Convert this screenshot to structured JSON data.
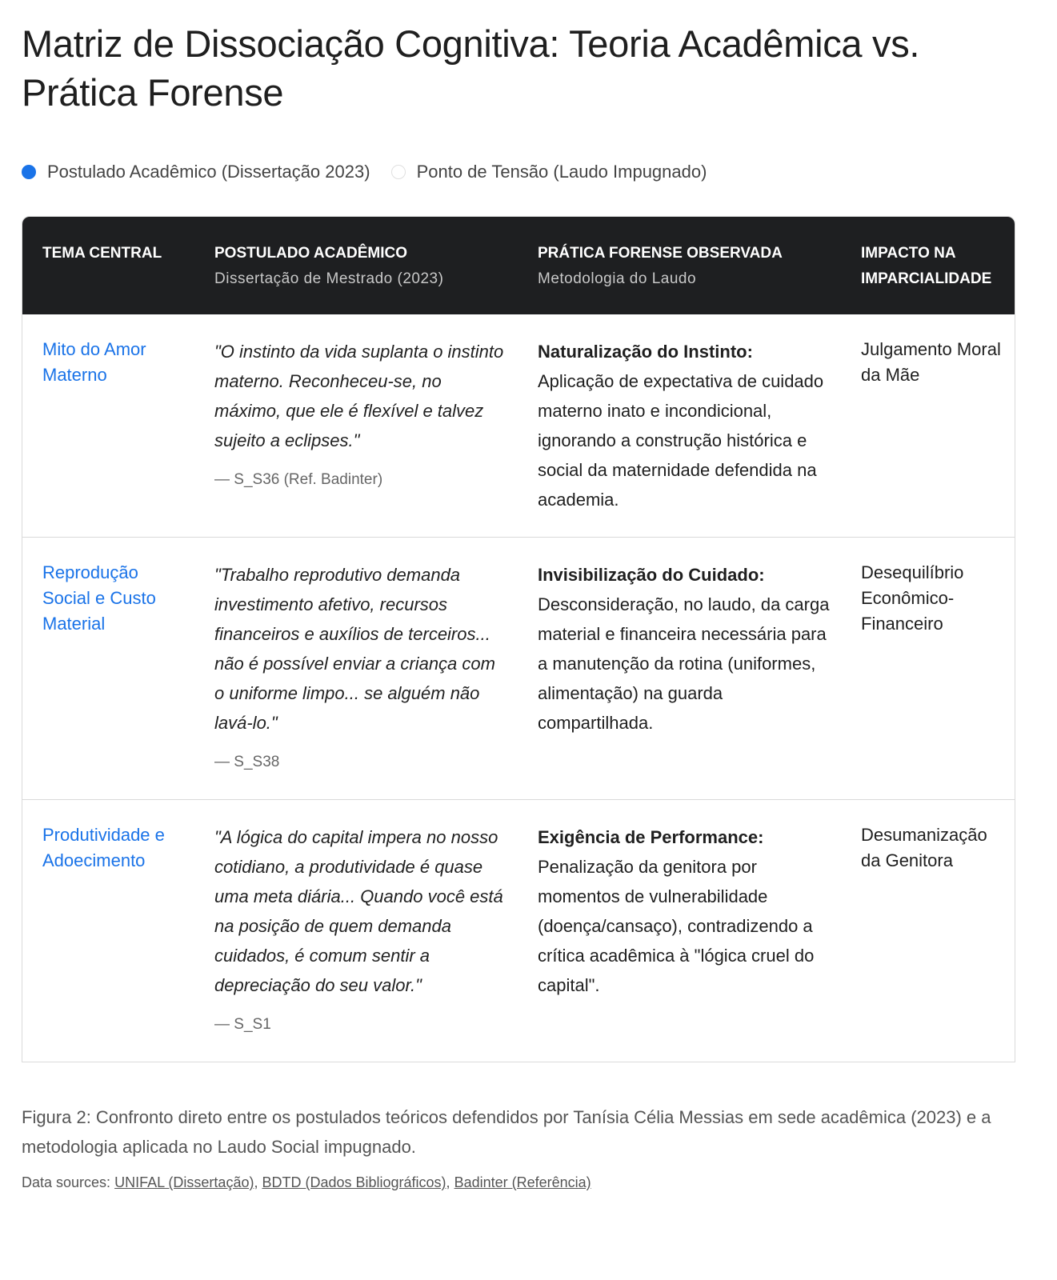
{
  "title": "Matriz de Dissociação Cognitiva: Teoria Acadêmica vs. Prática Forense",
  "legend": [
    {
      "label": "Postulado Acadêmico (Dissertação 2023)",
      "color": "#1a73e8",
      "style": "filled"
    },
    {
      "label": "Ponto de Tensão (Laudo Impugnado)",
      "color": "#e0e0e0",
      "style": "outline"
    }
  ],
  "table": {
    "headers": [
      {
        "title": "TEMA CENTRAL",
        "subtitle": ""
      },
      {
        "title": "POSTULADO ACADÊMICO",
        "subtitle": "Dissertação de Mestrado (2023)"
      },
      {
        "title": "PRÁTICA FORENSE OBSERVADA",
        "subtitle": "Metodologia do Laudo"
      },
      {
        "title": "IMPACTO NA IMPARCIALIDADE",
        "subtitle": ""
      }
    ],
    "rows": [
      {
        "theme": "Mito do Amor Materno",
        "quote": "\"O instinto da vida suplanta o instinto materno. Reconheceu-se, no máximo, que ele é flexível e talvez sujeito a eclipses.\"",
        "cite": "— S_S36 (Ref. Badinter)",
        "practice_title": "Naturalização do Instinto:",
        "practice_text": "Aplicação de expectativa de cuidado materno inato e incondicional, ignorando a construção histórica e social da maternidade defendida na academia.",
        "impact": "Julgamento Moral da Mãe"
      },
      {
        "theme": "Reprodução Social e Custo Material",
        "quote": "\"Trabalho reprodutivo demanda investimento afetivo, recursos financeiros e auxílios de terceiros... não é possível enviar a criança com o uniforme limpo... se alguém não lavá-lo.\"",
        "cite": "— S_S38",
        "practice_title": "Invisibilização do Cuidado:",
        "practice_text": "Desconsideração, no laudo, da carga material e financeira necessária para a manutenção da rotina (uniformes, alimentação) na guarda compartilhada.",
        "impact": "Desequilíbrio Econômico-Financeiro"
      },
      {
        "theme": "Produtividade e Adoecimento",
        "quote": "\"A lógica do capital impera no nosso cotidiano, a produtividade é quase uma meta diária... Quando você está na posição de quem demanda cuidados, é comum sentir a depreciação do seu valor.\"",
        "cite": "— S_S1",
        "practice_title": "Exigência de Performance:",
        "practice_text": "Penalização da genitora por momentos de vulnerabilidade (doença/cansaço), contradizendo a crítica acadêmica à \"lógica cruel do capital\".",
        "impact": "Desumanização da Genitora"
      }
    ]
  },
  "caption": "Figura 2: Confronto direto entre os postulados teóricos defendidos por Tanísia Célia Messias em sede acadêmica (2023) e a metodologia aplicada no Laudo Social impugnado.",
  "sources": {
    "label": "Data sources:",
    "links": [
      "UNIFAL (Dissertação)",
      "BDTD (Dados Bibliográficos)",
      "Badinter (Referência)"
    ]
  }
}
